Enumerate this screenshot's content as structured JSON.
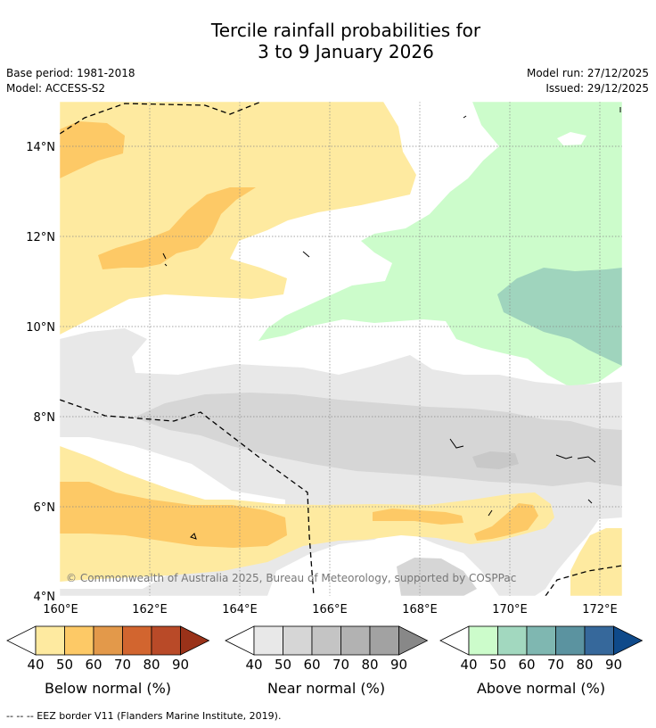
{
  "title": {
    "line1": "Tercile rainfall probabilities for",
    "line2": "3 to 9 January 2026"
  },
  "meta": {
    "base_period": "Base period: 1981-2018",
    "model": "Model: ACCESS-S2",
    "model_run": "Model run: 27/12/2025",
    "issued": "Issued: 29/12/2025"
  },
  "map": {
    "copyright": "© Commonwealth of Australia 2025, Bureau of Meteorology, supported by COSPPac",
    "lat_ticks": [
      "14°N",
      "12°N",
      "10°N",
      "8°N",
      "6°N",
      "4°N"
    ],
    "lon_ticks": [
      "160°E",
      "162°E",
      "164°E",
      "166°E",
      "168°E",
      "170°E",
      "172°E"
    ]
  },
  "legends": [
    {
      "label": "Below normal (%)",
      "ticks": [
        "40",
        "50",
        "60",
        "70",
        "80",
        "90"
      ],
      "colors": [
        "#ffffff",
        "#feeaa0",
        "#fdc966",
        "#e3994a",
        "#d2652f",
        "#b94a28",
        "#9a3219"
      ]
    },
    {
      "label": "Near normal (%)",
      "ticks": [
        "40",
        "50",
        "60",
        "70",
        "80",
        "90"
      ],
      "colors": [
        "#ffffff",
        "#e8e8e8",
        "#d6d6d6",
        "#c4c4c4",
        "#b2b2b2",
        "#a2a2a2",
        "#888888"
      ]
    },
    {
      "label": "Above normal (%)",
      "ticks": [
        "40",
        "50",
        "60",
        "70",
        "80",
        "90"
      ],
      "colors": [
        "#ffffff",
        "#ccfccb",
        "#a2d8bf",
        "#7fb7b1",
        "#5b93a0",
        "#36689b",
        "#0f4a8a"
      ]
    }
  ],
  "footnote": "--  --  -- EEZ border V11 (Flanders Marine Institute, 2019)."
}
